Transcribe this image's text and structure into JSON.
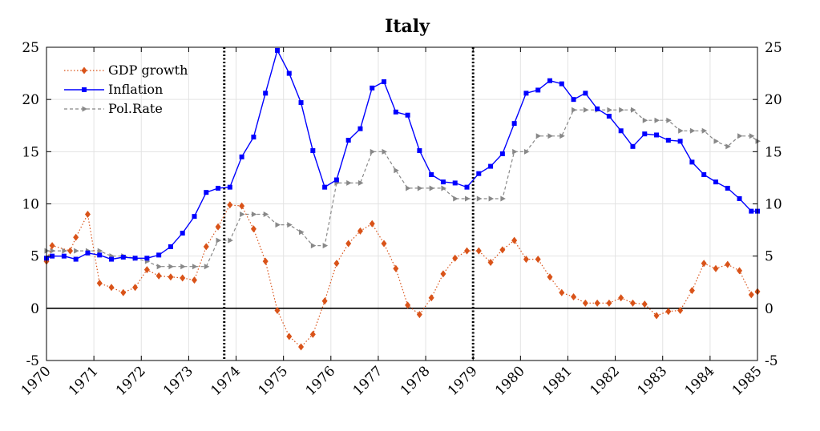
{
  "chart_data": {
    "type": "line",
    "title": "Italy",
    "xlim": [
      1970,
      1985
    ],
    "ylim": [
      -5,
      25
    ],
    "yticks": [
      -5,
      0,
      5,
      10,
      15,
      20,
      25
    ],
    "xticks": [
      1970,
      1971,
      1972,
      1973,
      1974,
      1975,
      1976,
      1977,
      1978,
      1979,
      1980,
      1981,
      1982,
      1983,
      1984,
      1985
    ],
    "grid": true,
    "legend_position": "top-left",
    "vertical_lines": [
      1973.75,
      1979.0
    ],
    "zero_line": 0,
    "colors": {
      "gdp": "#d95319",
      "inflation": "#0000ff",
      "polrate": "#888888"
    },
    "series": [
      {
        "name": "GDP growth",
        "color": "#d95319",
        "marker": "diamond",
        "dash": "dotted",
        "x": [
          1970.0,
          1970.12,
          1970.5,
          1970.62,
          1970.87,
          1971.12,
          1971.37,
          1971.62,
          1971.87,
          1972.12,
          1972.37,
          1972.62,
          1972.87,
          1973.12,
          1973.37,
          1973.62,
          1973.87,
          1974.12,
          1974.37,
          1974.62,
          1974.87,
          1975.12,
          1975.37,
          1975.62,
          1975.87,
          1976.12,
          1976.37,
          1976.62,
          1976.87,
          1977.12,
          1977.37,
          1977.62,
          1977.87,
          1978.12,
          1978.37,
          1978.62,
          1978.87,
          1979.12,
          1979.37,
          1979.62,
          1979.87,
          1980.12,
          1980.37,
          1980.62,
          1980.87,
          1981.12,
          1981.37,
          1981.62,
          1981.87,
          1982.12,
          1982.37,
          1982.62,
          1982.87,
          1983.12,
          1983.37,
          1983.62,
          1983.87,
          1984.12,
          1984.37,
          1984.62,
          1984.87,
          1985.0
        ],
        "y": [
          4.5,
          6.0,
          5.5,
          6.8,
          9.0,
          2.4,
          2.0,
          1.5,
          2.0,
          3.7,
          3.1,
          3.0,
          2.9,
          2.7,
          5.9,
          7.8,
          9.9,
          9.8,
          7.6,
          4.5,
          -0.2,
          -2.7,
          -3.7,
          -2.5,
          0.7,
          4.3,
          6.2,
          7.4,
          8.1,
          6.2,
          3.8,
          0.3,
          -0.6,
          1.0,
          3.3,
          4.8,
          5.5,
          5.5,
          4.4,
          5.6,
          6.5,
          4.7,
          4.7,
          3.0,
          1.5,
          1.1,
          0.5,
          0.5,
          0.5,
          1.0,
          0.5,
          0.4,
          -0.7,
          -0.3,
          -0.2,
          1.7,
          4.3,
          3.8,
          4.2,
          3.6,
          1.3,
          1.6
        ]
      },
      {
        "name": "Inflation",
        "color": "#0000ff",
        "marker": "square",
        "dash": "solid",
        "x": [
          1970.0,
          1970.12,
          1970.37,
          1970.62,
          1970.87,
          1971.12,
          1971.37,
          1971.62,
          1971.87,
          1972.12,
          1972.37,
          1972.62,
          1972.87,
          1973.12,
          1973.37,
          1973.62,
          1973.87,
          1974.12,
          1974.37,
          1974.62,
          1974.87,
          1975.12,
          1975.37,
          1975.62,
          1975.87,
          1976.12,
          1976.37,
          1976.62,
          1976.87,
          1977.12,
          1977.37,
          1977.62,
          1977.87,
          1978.12,
          1978.37,
          1978.62,
          1978.87,
          1979.12,
          1979.37,
          1979.62,
          1979.87,
          1980.12,
          1980.37,
          1980.62,
          1980.87,
          1981.12,
          1981.37,
          1981.62,
          1981.87,
          1982.12,
          1982.37,
          1982.62,
          1982.87,
          1983.12,
          1983.37,
          1983.62,
          1983.87,
          1984.12,
          1984.37,
          1984.62,
          1984.87,
          1985.0
        ],
        "y": [
          4.8,
          5.0,
          5.0,
          4.7,
          5.3,
          5.1,
          4.7,
          4.9,
          4.8,
          4.8,
          5.1,
          5.9,
          7.2,
          8.8,
          11.1,
          11.5,
          11.6,
          14.5,
          16.4,
          20.6,
          24.7,
          22.5,
          19.7,
          15.1,
          11.6,
          12.3,
          16.1,
          17.2,
          21.1,
          21.7,
          18.8,
          18.5,
          15.1,
          12.8,
          12.1,
          12.0,
          11.6,
          12.9,
          13.6,
          14.8,
          17.7,
          20.6,
          20.9,
          21.8,
          21.5,
          20.0,
          20.6,
          19.1,
          18.4,
          17.0,
          15.5,
          16.7,
          16.6,
          16.1,
          16.0,
          14.0,
          12.8,
          12.1,
          11.5,
          10.5,
          9.3,
          9.3
        ]
      },
      {
        "name": "Pol.Rate",
        "color": "#888888",
        "marker": "triangle-right",
        "dash": "dashed",
        "x": [
          1970.0,
          1970.12,
          1970.37,
          1970.62,
          1970.87,
          1971.12,
          1971.37,
          1971.62,
          1971.87,
          1972.12,
          1972.37,
          1972.62,
          1972.87,
          1973.12,
          1973.37,
          1973.62,
          1973.87,
          1974.12,
          1974.37,
          1974.62,
          1974.87,
          1975.12,
          1975.37,
          1975.62,
          1975.87,
          1976.12,
          1976.37,
          1976.62,
          1976.87,
          1977.12,
          1977.37,
          1977.62,
          1977.87,
          1978.12,
          1978.37,
          1978.62,
          1978.87,
          1979.12,
          1979.37,
          1979.62,
          1979.87,
          1980.12,
          1980.37,
          1980.62,
          1980.87,
          1981.12,
          1981.37,
          1981.62,
          1981.87,
          1982.12,
          1982.37,
          1982.62,
          1982.87,
          1983.12,
          1983.37,
          1983.62,
          1983.87,
          1984.12,
          1984.37,
          1984.62,
          1984.87,
          1985.0
        ],
        "y": [
          5.5,
          5.5,
          5.5,
          5.5,
          5.5,
          5.5,
          5.0,
          5.0,
          4.8,
          4.5,
          4.0,
          4.0,
          4.0,
          4.0,
          4.0,
          6.5,
          6.5,
          9.0,
          9.0,
          9.0,
          8.0,
          8.0,
          7.3,
          6.0,
          6.0,
          12.0,
          12.0,
          12.0,
          15.0,
          15.0,
          13.2,
          11.5,
          11.5,
          11.5,
          11.5,
          10.5,
          10.5,
          10.5,
          10.5,
          10.5,
          15.0,
          15.0,
          16.5,
          16.5,
          16.5,
          19.0,
          19.0,
          19.0,
          19.0,
          19.0,
          19.0,
          18.0,
          18.0,
          18.0,
          17.0,
          17.0,
          17.0,
          16.0,
          15.5,
          16.5,
          16.5,
          16.0
        ]
      }
    ]
  }
}
